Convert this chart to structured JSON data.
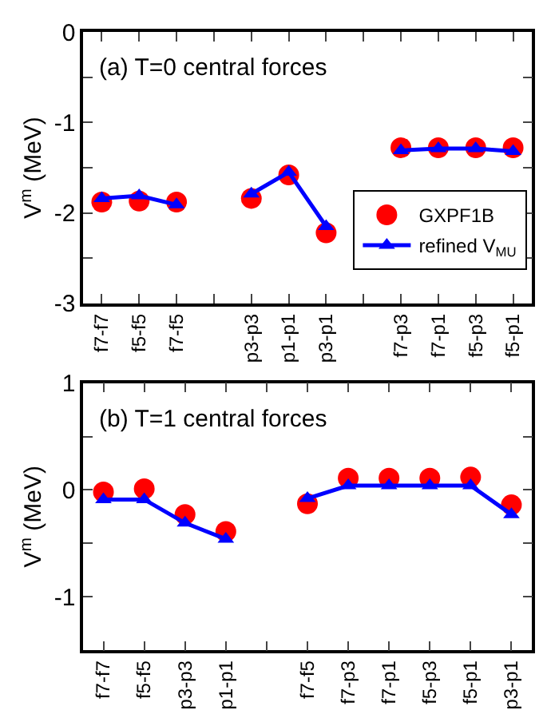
{
  "chart_data": [
    {
      "type": "line",
      "title": "(a) T=0 central forces",
      "ylabel": "V$^{m}$ (MeV)",
      "categories": [
        "f7-f7",
        "f5-f5",
        "f7-f5",
        null,
        "p3-p3",
        "p1-p1",
        "p3-p1",
        null,
        "f7-p3",
        "f7-p1",
        "f5-p3",
        "f5-p1"
      ],
      "series": [
        {
          "name": "GXPF1B",
          "type": "scatter",
          "marker": "circle",
          "color": "#ff0000",
          "values": [
            -1.88,
            -1.87,
            -1.88,
            null,
            -1.84,
            -1.58,
            -2.22,
            null,
            -1.28,
            -1.28,
            -1.28,
            -1.28
          ]
        },
        {
          "name": "refined V$_{MU}$",
          "marker": "triangle",
          "line_style": "solid",
          "color": "#0000ff",
          "values": [
            -1.84,
            -1.81,
            -1.91,
            null,
            -1.79,
            -1.55,
            -2.15,
            null,
            -1.31,
            -1.29,
            -1.29,
            -1.32
          ]
        }
      ],
      "ylim": [
        -3,
        0
      ],
      "yticks": [
        0,
        {
          "value": -0.5,
          "label": null
        },
        -1,
        {
          "value": -1.5,
          "label": null
        },
        -2,
        {
          "value": -2.5,
          "label": null
        },
        -3
      ],
      "legend": "right"
    },
    {
      "type": "line",
      "title": "(b) T=1 central forces",
      "ylabel": "V$^{m}$ (MeV)",
      "categories": [
        "f7-f7",
        "f5-f5",
        "p3-p3",
        "p1-p1",
        null,
        "f7-f5",
        "f7-p3",
        "f7-p1",
        "f5-p3",
        "f5-p1",
        "p3-p1"
      ],
      "series": [
        {
          "type": "scatter",
          "marker": "circle",
          "color": "#ff0000",
          "values": [
            -0.02,
            0.01,
            -0.23,
            -0.39,
            null,
            -0.13,
            0.11,
            0.11,
            0.11,
            0.12,
            -0.14
          ]
        },
        {
          "marker": "triangle",
          "line_style": "solid",
          "color": "#0000ff",
          "values": [
            -0.09,
            -0.09,
            -0.31,
            -0.46,
            null,
            -0.08,
            0.04,
            0.04,
            0.04,
            0.04,
            -0.23
          ]
        }
      ],
      "ylim": [
        -1.5,
        1
      ],
      "yticks": [
        1,
        {
          "value": 0.5,
          "label": null
        },
        0,
        {
          "value": -0.5,
          "label": null
        },
        -1
      ],
      "legend": false
    }
  ]
}
